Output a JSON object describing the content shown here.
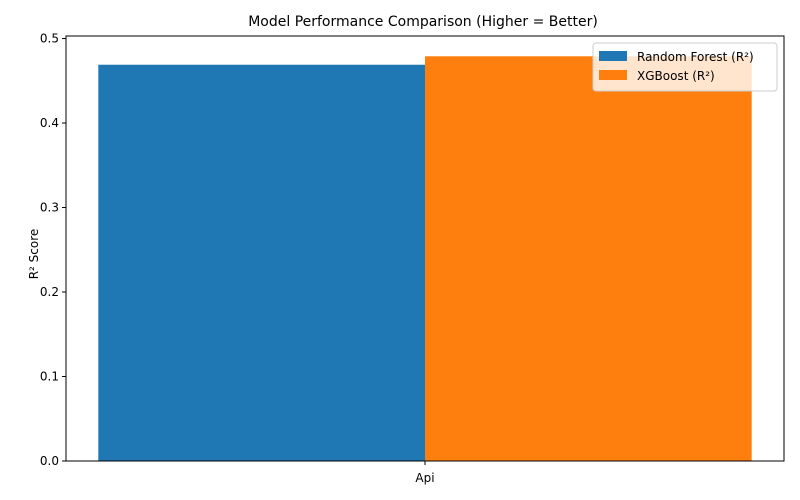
{
  "chart_data": {
    "type": "bar",
    "title": "Model Performance Comparison (Higher = Better)",
    "xlabel": "",
    "ylabel": "R² Score",
    "categories": [
      "Api"
    ],
    "series": [
      {
        "name": "Random Forest (R²)",
        "values": [
          0.469
        ],
        "color": "#1f77b4"
      },
      {
        "name": "XGBoost (R²)",
        "values": [
          0.479
        ],
        "color": "#ff7f0e"
      }
    ],
    "ylim": [
      0,
      0.503
    ],
    "yticks": [
      0.0,
      0.1,
      0.2,
      0.3,
      0.4,
      0.5
    ],
    "ytick_labels": [
      "0.0",
      "0.1",
      "0.2",
      "0.3",
      "0.4",
      "0.5"
    ],
    "grid": false,
    "legend_position": "top-right"
  }
}
